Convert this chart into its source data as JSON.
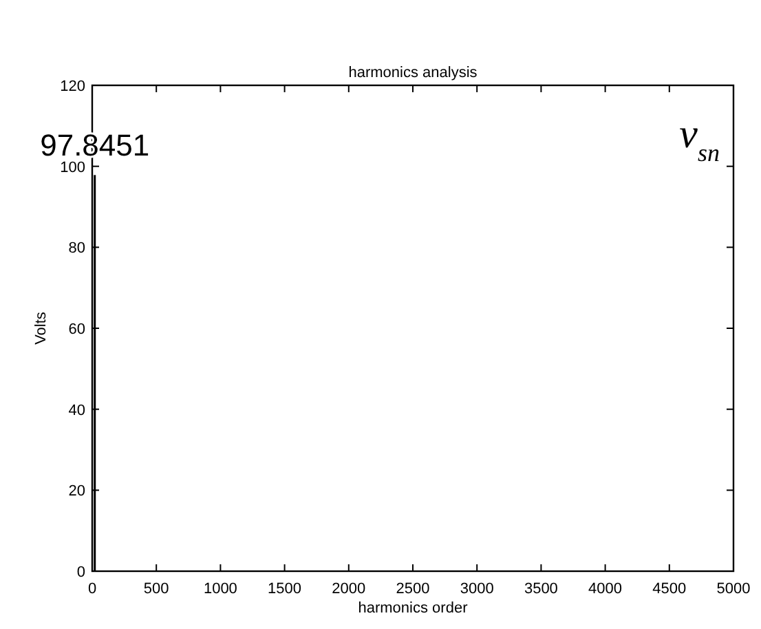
{
  "chart_data": {
    "type": "bar",
    "title": "harmonics analysis",
    "xlabel": "harmonics order",
    "ylabel": "Volts",
    "x": [
      20
    ],
    "values": [
      97.8451
    ],
    "color": "#000000",
    "data_labels": true,
    "xlim": [
      0,
      5000
    ],
    "xticks": [
      0,
      500,
      1000,
      1500,
      2000,
      2500,
      3000,
      3500,
      4000,
      4500,
      5000
    ],
    "ylim": [
      0,
      120
    ],
    "yticks": [
      0,
      20,
      40,
      60,
      80,
      100,
      120
    ],
    "annotations": [
      "v$_{sn}$"
    ],
    "grid": false
  }
}
